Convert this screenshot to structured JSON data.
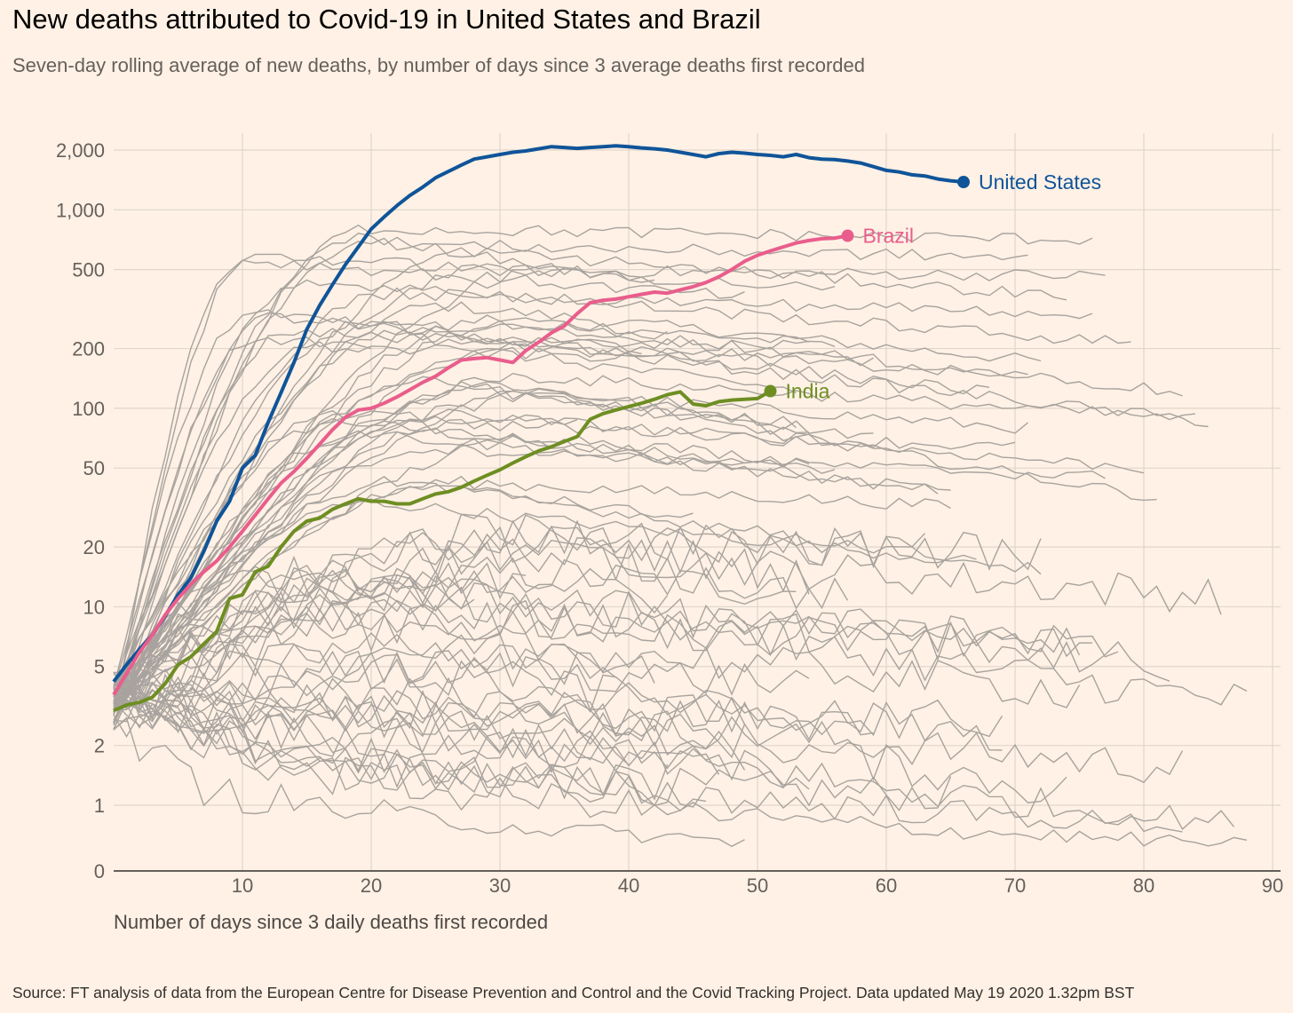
{
  "header": {
    "title": "New deaths attributed to Covid-19 in United States and Brazil",
    "subtitle": "Seven-day rolling average of new deaths, by number of days since 3 average deaths first recorded"
  },
  "footer": {
    "source": "Source: FT analysis of data from the European Centre for Disease Prevention and Control and the Covid Tracking Project. Data updated May 19 2020 1.32pm BST"
  },
  "chart_data": {
    "type": "line",
    "xlabel": "Number of days since 3 daily deaths first recorded",
    "ylabel": "",
    "x_ticks": [
      10,
      20,
      30,
      40,
      50,
      60,
      70,
      80,
      90
    ],
    "x_tick_labels": [
      "10",
      "20",
      "30",
      "40",
      "50",
      "60",
      "70",
      "80",
      "90"
    ],
    "y_ticks": [
      0,
      1,
      2,
      5,
      10,
      20,
      50,
      100,
      200,
      500,
      1000,
      2000
    ],
    "y_tick_labels": [
      "0",
      "1",
      "2",
      "5",
      "10",
      "20",
      "50",
      "100",
      "200",
      "500",
      "1,000",
      "2,000"
    ],
    "y_scale": "log",
    "xlim": [
      0,
      90
    ],
    "grid": true,
    "highlight_series": [
      {
        "name": "United States",
        "color": "#0f5499",
        "points": [
          [
            0,
            4.2
          ],
          [
            1,
            5.1
          ],
          [
            2,
            6.1
          ],
          [
            3,
            7.2
          ],
          [
            4,
            9
          ],
          [
            5,
            11.5
          ],
          [
            6,
            14
          ],
          [
            7,
            19
          ],
          [
            8,
            27
          ],
          [
            9,
            34
          ],
          [
            10,
            50
          ],
          [
            11,
            58
          ],
          [
            12,
            85
          ],
          [
            13,
            120
          ],
          [
            14,
            170
          ],
          [
            15,
            250
          ],
          [
            16,
            330
          ],
          [
            17,
            420
          ],
          [
            18,
            530
          ],
          [
            19,
            650
          ],
          [
            20,
            800
          ],
          [
            21,
            920
          ],
          [
            22,
            1050
          ],
          [
            23,
            1180
          ],
          [
            24,
            1300
          ],
          [
            25,
            1450
          ],
          [
            26,
            1560
          ],
          [
            27,
            1680
          ],
          [
            28,
            1800
          ],
          [
            29,
            1850
          ],
          [
            30,
            1900
          ],
          [
            31,
            1950
          ],
          [
            32,
            1980
          ],
          [
            33,
            2030
          ],
          [
            34,
            2080
          ],
          [
            35,
            2060
          ],
          [
            36,
            2040
          ],
          [
            37,
            2060
          ],
          [
            38,
            2080
          ],
          [
            39,
            2100
          ],
          [
            40,
            2080
          ],
          [
            41,
            2050
          ],
          [
            42,
            2030
          ],
          [
            43,
            2000
          ],
          [
            44,
            1950
          ],
          [
            45,
            1900
          ],
          [
            46,
            1850
          ],
          [
            47,
            1920
          ],
          [
            48,
            1950
          ],
          [
            49,
            1930
          ],
          [
            50,
            1900
          ],
          [
            51,
            1880
          ],
          [
            52,
            1850
          ],
          [
            53,
            1900
          ],
          [
            54,
            1830
          ],
          [
            55,
            1800
          ],
          [
            56,
            1790
          ],
          [
            57,
            1760
          ],
          [
            58,
            1720
          ],
          [
            59,
            1650
          ],
          [
            60,
            1580
          ],
          [
            61,
            1550
          ],
          [
            62,
            1500
          ],
          [
            63,
            1480
          ],
          [
            64,
            1430
          ],
          [
            65,
            1400
          ],
          [
            66,
            1380
          ]
        ]
      },
      {
        "name": "Brazil",
        "color": "#e95d8c",
        "points": [
          [
            0,
            3.6
          ],
          [
            1,
            4.6
          ],
          [
            2,
            5.9
          ],
          [
            3,
            7.2
          ],
          [
            4,
            9.1
          ],
          [
            5,
            11
          ],
          [
            6,
            13
          ],
          [
            7,
            15
          ],
          [
            8,
            17
          ],
          [
            9,
            20
          ],
          [
            10,
            24
          ],
          [
            11,
            29
          ],
          [
            12,
            35
          ],
          [
            13,
            42
          ],
          [
            14,
            48
          ],
          [
            15,
            56
          ],
          [
            16,
            66
          ],
          [
            17,
            78
          ],
          [
            18,
            90
          ],
          [
            19,
            98
          ],
          [
            20,
            100
          ],
          [
            21,
            106
          ],
          [
            22,
            114
          ],
          [
            23,
            124
          ],
          [
            24,
            135
          ],
          [
            25,
            145
          ],
          [
            26,
            160
          ],
          [
            27,
            175
          ],
          [
            28,
            178
          ],
          [
            29,
            180
          ],
          [
            30,
            175
          ],
          [
            31,
            170
          ],
          [
            32,
            195
          ],
          [
            33,
            215
          ],
          [
            34,
            240
          ],
          [
            35,
            260
          ],
          [
            36,
            300
          ],
          [
            37,
            340
          ],
          [
            38,
            350
          ],
          [
            39,
            355
          ],
          [
            40,
            365
          ],
          [
            41,
            375
          ],
          [
            42,
            385
          ],
          [
            43,
            380
          ],
          [
            44,
            395
          ],
          [
            45,
            410
          ],
          [
            46,
            430
          ],
          [
            47,
            460
          ],
          [
            48,
            500
          ],
          [
            49,
            550
          ],
          [
            50,
            590
          ],
          [
            51,
            620
          ],
          [
            52,
            650
          ],
          [
            53,
            680
          ],
          [
            54,
            700
          ],
          [
            55,
            715
          ],
          [
            56,
            720
          ],
          [
            57,
            740
          ]
        ]
      },
      {
        "name": "India",
        "color": "#6e8e23",
        "points": [
          [
            0,
            3
          ],
          [
            1,
            3.2
          ],
          [
            2,
            3.3
          ],
          [
            3,
            3.5
          ],
          [
            4,
            4.1
          ],
          [
            5,
            5.1
          ],
          [
            6,
            5.6
          ],
          [
            7,
            6.5
          ],
          [
            8,
            7.5
          ],
          [
            9,
            11
          ],
          [
            10,
            11.5
          ],
          [
            11,
            15
          ],
          [
            12,
            16
          ],
          [
            13,
            20
          ],
          [
            14,
            24
          ],
          [
            15,
            27
          ],
          [
            16,
            28
          ],
          [
            17,
            31
          ],
          [
            18,
            33
          ],
          [
            19,
            35
          ],
          [
            20,
            34
          ],
          [
            21,
            34
          ],
          [
            22,
            33
          ],
          [
            23,
            33
          ],
          [
            24,
            35
          ],
          [
            25,
            37
          ],
          [
            26,
            38
          ],
          [
            27,
            40
          ],
          [
            28,
            43
          ],
          [
            29,
            46
          ],
          [
            30,
            49
          ],
          [
            31,
            53
          ],
          [
            32,
            57
          ],
          [
            33,
            61
          ],
          [
            34,
            64
          ],
          [
            35,
            68
          ],
          [
            36,
            72
          ],
          [
            37,
            88
          ],
          [
            38,
            94
          ],
          [
            39,
            98
          ],
          [
            40,
            102
          ],
          [
            41,
            106
          ],
          [
            42,
            111
          ],
          [
            43,
            117
          ],
          [
            44,
            121
          ],
          [
            45,
            105
          ],
          [
            46,
            103
          ],
          [
            47,
            108
          ],
          [
            48,
            110
          ],
          [
            49,
            111
          ],
          [
            50,
            112
          ],
          [
            51,
            122
          ]
        ]
      }
    ]
  }
}
